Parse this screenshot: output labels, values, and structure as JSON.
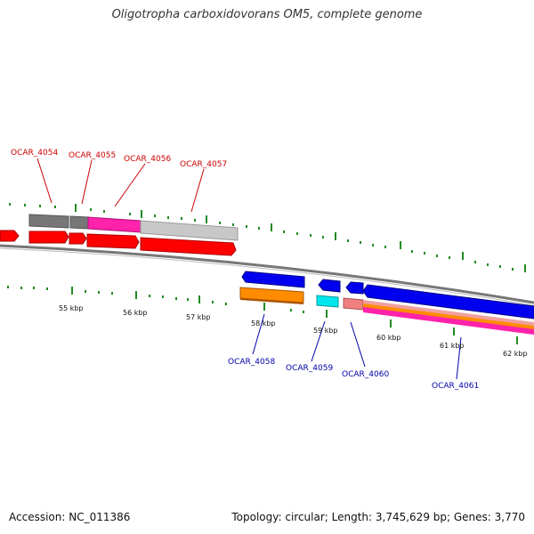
{
  "title": "Oligotropha carboxidovorans OM5, complete genome",
  "footer": {
    "accession": "Accession: NC_011386",
    "summary": "Topology: circular; Length: 3,745,629 bp; Genes: 3,770"
  },
  "ticks": [
    {
      "label": "55 kbp"
    },
    {
      "label": "56 kbp"
    },
    {
      "label": "57 kbp"
    },
    {
      "label": "58 kbp"
    },
    {
      "label": "59 kbp"
    },
    {
      "label": "60 kbp"
    },
    {
      "label": "61 kbp"
    },
    {
      "label": "62 kbp"
    }
  ],
  "genes_top": [
    {
      "label": "OCAR_4054"
    },
    {
      "label": "OCAR_4055"
    },
    {
      "label": "OCAR_4056"
    },
    {
      "label": "OCAR_4057"
    }
  ],
  "genes_bottom": [
    {
      "label": "OCAR_4058"
    },
    {
      "label": "OCAR_4059"
    },
    {
      "label": "OCAR_4060"
    },
    {
      "label": "OCAR_4061"
    }
  ],
  "colors": {
    "forward_gene": "#ff0000",
    "reverse_gene": "#0000ee",
    "top_label": "#cc0000",
    "bottom_label": "#0000aa",
    "tick_mark": "#228b22",
    "backbone": "#888888"
  }
}
